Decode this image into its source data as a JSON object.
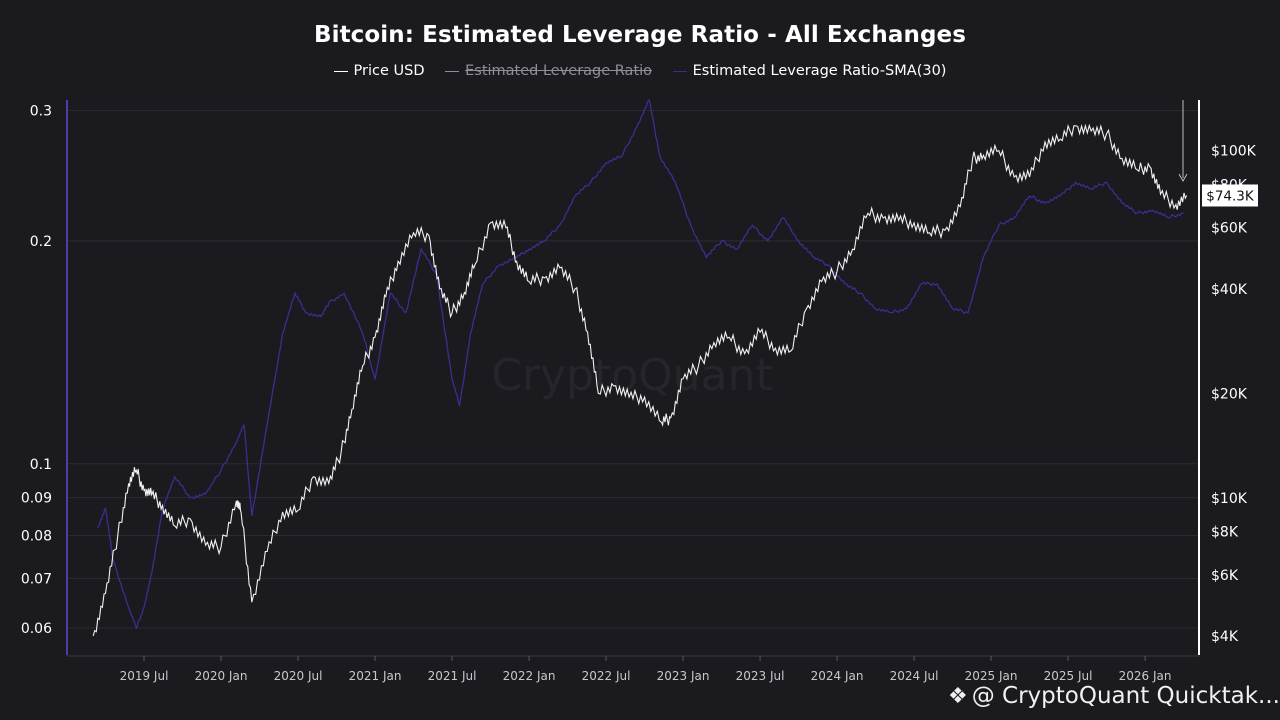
{
  "chart_data": {
    "type": "line",
    "title": "Bitcoin: Estimated Leverage Ratio - All Exchanges",
    "legend": [
      {
        "name": "Price USD",
        "color": "#ffffff",
        "visible": true
      },
      {
        "name": "Estimated Leverage Ratio",
        "color": "#8f8e96",
        "visible": false
      },
      {
        "name": "Estimated Leverage Ratio-SMA(30)",
        "color": "#3a2f8f",
        "visible": true
      }
    ],
    "x_ticks": [
      "2019 Jul",
      "2020 Jan",
      "2020 Jul",
      "2021 Jan",
      "2021 Jul",
      "2022 Jan",
      "2022 Jul",
      "2023 Jan",
      "2023 Jul",
      "2024 Jan",
      "2024 Jul",
      "2025 Jan",
      "2025 Jul",
      "2026 Jan"
    ],
    "left_axis": {
      "scale": "log",
      "range": [
        0.055,
        0.31
      ],
      "ticks": [
        {
          "value": 0.3,
          "label": "0.3"
        },
        {
          "value": 0.2,
          "label": "0.2"
        },
        {
          "value": 0.1,
          "label": "0.1"
        },
        {
          "value": 0.09,
          "label": "0.09"
        },
        {
          "value": 0.08,
          "label": "0.08"
        },
        {
          "value": 0.07,
          "label": "0.07"
        },
        {
          "value": 0.06,
          "label": "0.06"
        }
      ]
    },
    "right_axis": {
      "scale": "log",
      "range": [
        3500,
        140000
      ],
      "ticks": [
        {
          "value": 100000,
          "label": "$100K"
        },
        {
          "value": 80000,
          "label": "$80K"
        },
        {
          "value": 60000,
          "label": "$60K"
        },
        {
          "value": 40000,
          "label": "$40K"
        },
        {
          "value": 20000,
          "label": "$20K"
        },
        {
          "value": 10000,
          "label": "$10K"
        },
        {
          "value": 8000,
          "label": "$8K"
        },
        {
          "value": 6000,
          "label": "$6K"
        },
        {
          "value": 4000,
          "label": "$4K"
        }
      ]
    },
    "current_price_label": "$74.3K",
    "current_price": 74300,
    "series": [
      {
        "name": "Price USD",
        "axis": "right",
        "x": [
          2019.17,
          2019.25,
          2019.33,
          2019.4,
          2019.45,
          2019.5,
          2019.55,
          2019.62,
          2019.7,
          2019.8,
          2019.9,
          2020.0,
          2020.1,
          2020.13,
          2020.2,
          2020.3,
          2020.4,
          2020.5,
          2020.6,
          2020.7,
          2020.78,
          2020.85,
          2020.92,
          2021.0,
          2021.07,
          2021.15,
          2021.25,
          2021.35,
          2021.42,
          2021.5,
          2021.58,
          2021.65,
          2021.75,
          2021.85,
          2021.92,
          2022.0,
          2022.1,
          2022.2,
          2022.3,
          2022.38,
          2022.45,
          2022.55,
          2022.65,
          2022.75,
          2022.86,
          2022.92,
          2023.0,
          2023.1,
          2023.2,
          2023.3,
          2023.4,
          2023.5,
          2023.6,
          2023.7,
          2023.8,
          2023.9,
          2024.0,
          2024.1,
          2024.2,
          2024.3,
          2024.4,
          2024.5,
          2024.6,
          2024.7,
          2024.8,
          2024.88,
          2024.95,
          2025.05,
          2025.15,
          2025.25,
          2025.35,
          2025.45,
          2025.55,
          2025.65,
          2025.75,
          2025.85,
          2025.95,
          2026.03,
          2026.1,
          2026.2,
          2026.27
        ],
        "y": [
          4000,
          5300,
          7800,
          11000,
          12000,
          10500,
          10200,
          9500,
          8300,
          8700,
          7300,
          7200,
          9800,
          9100,
          5000,
          7000,
          9100,
          9200,
          11500,
          11000,
          13500,
          18000,
          24000,
          29000,
          38000,
          48000,
          58000,
          57000,
          40000,
          34000,
          39000,
          47000,
          62000,
          60000,
          48000,
          42000,
          43000,
          46000,
          40000,
          30000,
          20000,
          21000,
          19500,
          19500,
          16500,
          17000,
          22000,
          24000,
          28000,
          29000,
          26000,
          30000,
          27000,
          26500,
          35000,
          42000,
          45000,
          52000,
          66000,
          64000,
          63000,
          62000,
          58000,
          59000,
          69000,
          95000,
          97000,
          100000,
          84000,
          84000,
          106000,
          108000,
          118000,
          114000,
          112000,
          95000,
          88000,
          90000,
          75000,
          70000,
          74300
        ]
      },
      {
        "name": "Estimated Leverage Ratio-SMA(30)",
        "axis": "left",
        "x": [
          2019.2,
          2019.25,
          2019.3,
          2019.4,
          2019.45,
          2019.5,
          2019.55,
          2019.62,
          2019.7,
          2019.8,
          2019.9,
          2020.0,
          2020.1,
          2020.15,
          2020.2,
          2020.3,
          2020.4,
          2020.48,
          2020.55,
          2020.65,
          2020.7,
          2020.8,
          2020.92,
          2021.0,
          2021.1,
          2021.2,
          2021.3,
          2021.4,
          2021.5,
          2021.55,
          2021.62,
          2021.7,
          2021.8,
          2021.92,
          2022.0,
          2022.1,
          2022.2,
          2022.3,
          2022.4,
          2022.5,
          2022.6,
          2022.7,
          2022.78,
          2022.85,
          2022.95,
          2023.05,
          2023.15,
          2023.25,
          2023.35,
          2023.45,
          2023.55,
          2023.65,
          2023.75,
          2023.85,
          2023.95,
          2024.05,
          2024.15,
          2024.25,
          2024.35,
          2024.45,
          2024.55,
          2024.65,
          2024.75,
          2024.85,
          2024.95,
          2025.05,
          2025.15,
          2025.25,
          2025.35,
          2025.45,
          2025.55,
          2025.65,
          2025.75,
          2025.85,
          2025.95,
          2026.05,
          2026.15,
          2026.25
        ],
        "y": [
          0.082,
          0.087,
          0.074,
          0.064,
          0.06,
          0.064,
          0.071,
          0.087,
          0.096,
          0.09,
          0.091,
          0.098,
          0.107,
          0.113,
          0.085,
          0.113,
          0.15,
          0.17,
          0.16,
          0.158,
          0.165,
          0.17,
          0.15,
          0.13,
          0.17,
          0.16,
          0.195,
          0.18,
          0.13,
          0.12,
          0.15,
          0.175,
          0.185,
          0.19,
          0.195,
          0.2,
          0.21,
          0.23,
          0.24,
          0.255,
          0.26,
          0.285,
          0.31,
          0.26,
          0.24,
          0.21,
          0.19,
          0.2,
          0.195,
          0.21,
          0.2,
          0.215,
          0.2,
          0.19,
          0.185,
          0.175,
          0.17,
          0.162,
          0.16,
          0.162,
          0.175,
          0.175,
          0.162,
          0.16,
          0.19,
          0.21,
          0.215,
          0.23,
          0.225,
          0.23,
          0.24,
          0.235,
          0.24,
          0.225,
          0.218,
          0.22,
          0.215,
          0.218
        ]
      }
    ]
  },
  "watermark": {
    "brand": "@ CryptoQuant Quicktak...",
    "center": "CryptoQuant"
  }
}
